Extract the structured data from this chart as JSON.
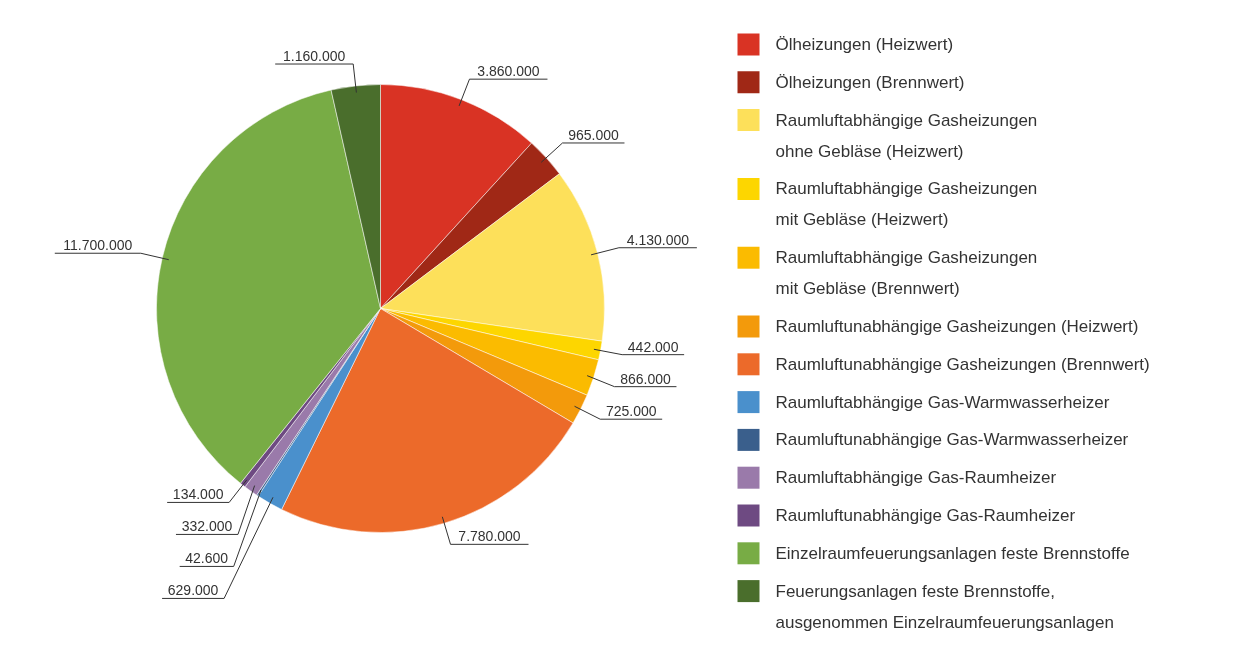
{
  "chart_data": {
    "type": "pie",
    "legend": "right",
    "categories": [
      "Ölheizungen (Heizwert)",
      "Ölheizungen (Brennwert)",
      "Raumluftabhängige Gasheizungen\nohne Gebläse (Heizwert)",
      "Raumluftabhängige Gasheizungen\nmit Gebläse (Heizwert)",
      "Raumluftabhängige Gasheizungen\nmit Gebläse (Brennwert)",
      "Raumluftunabhängige Gasheizungen  (Heizwert)",
      "Raumluftunabhängige Gasheizungen  (Brennwert)",
      "Raumluftabhängige Gas-Warmwasserheizer",
      "Raumluftunabhängige Gas-Warmwasserheizer",
      "Raumluftabhängige Gas-Raumheizer",
      "Raumluftunabhängige Gas-Raumheizer",
      "Einzelraumfeuerungsanlagen feste Brennstoffe",
      "Feuerungsanlagen feste Brennstoffe,\nausgenommen Einzelraumfeuerungsanlagen"
    ],
    "values": [
      3860000,
      965000,
      4130000,
      442000,
      866000,
      725000,
      7780000,
      629000,
      42600,
      332000,
      134000,
      11700000,
      1160000
    ],
    "value_labels": [
      "3.860.000",
      "965.000",
      "4.130.000",
      "442.000",
      "866.000",
      "725.000",
      "7.780.000",
      "629.000",
      "42.600",
      "332.000",
      "134.000",
      "11.700.000",
      "1.160.000"
    ],
    "colors": [
      "#d93324",
      "#a02816",
      "#fde05a",
      "#fdd600",
      "#fbbb00",
      "#f39a0b",
      "#ec6a2a",
      "#4a90cc",
      "#3a5f8c",
      "#9a7aaa",
      "#6e4a82",
      "#78ac45",
      "#4a6e2c"
    ]
  }
}
